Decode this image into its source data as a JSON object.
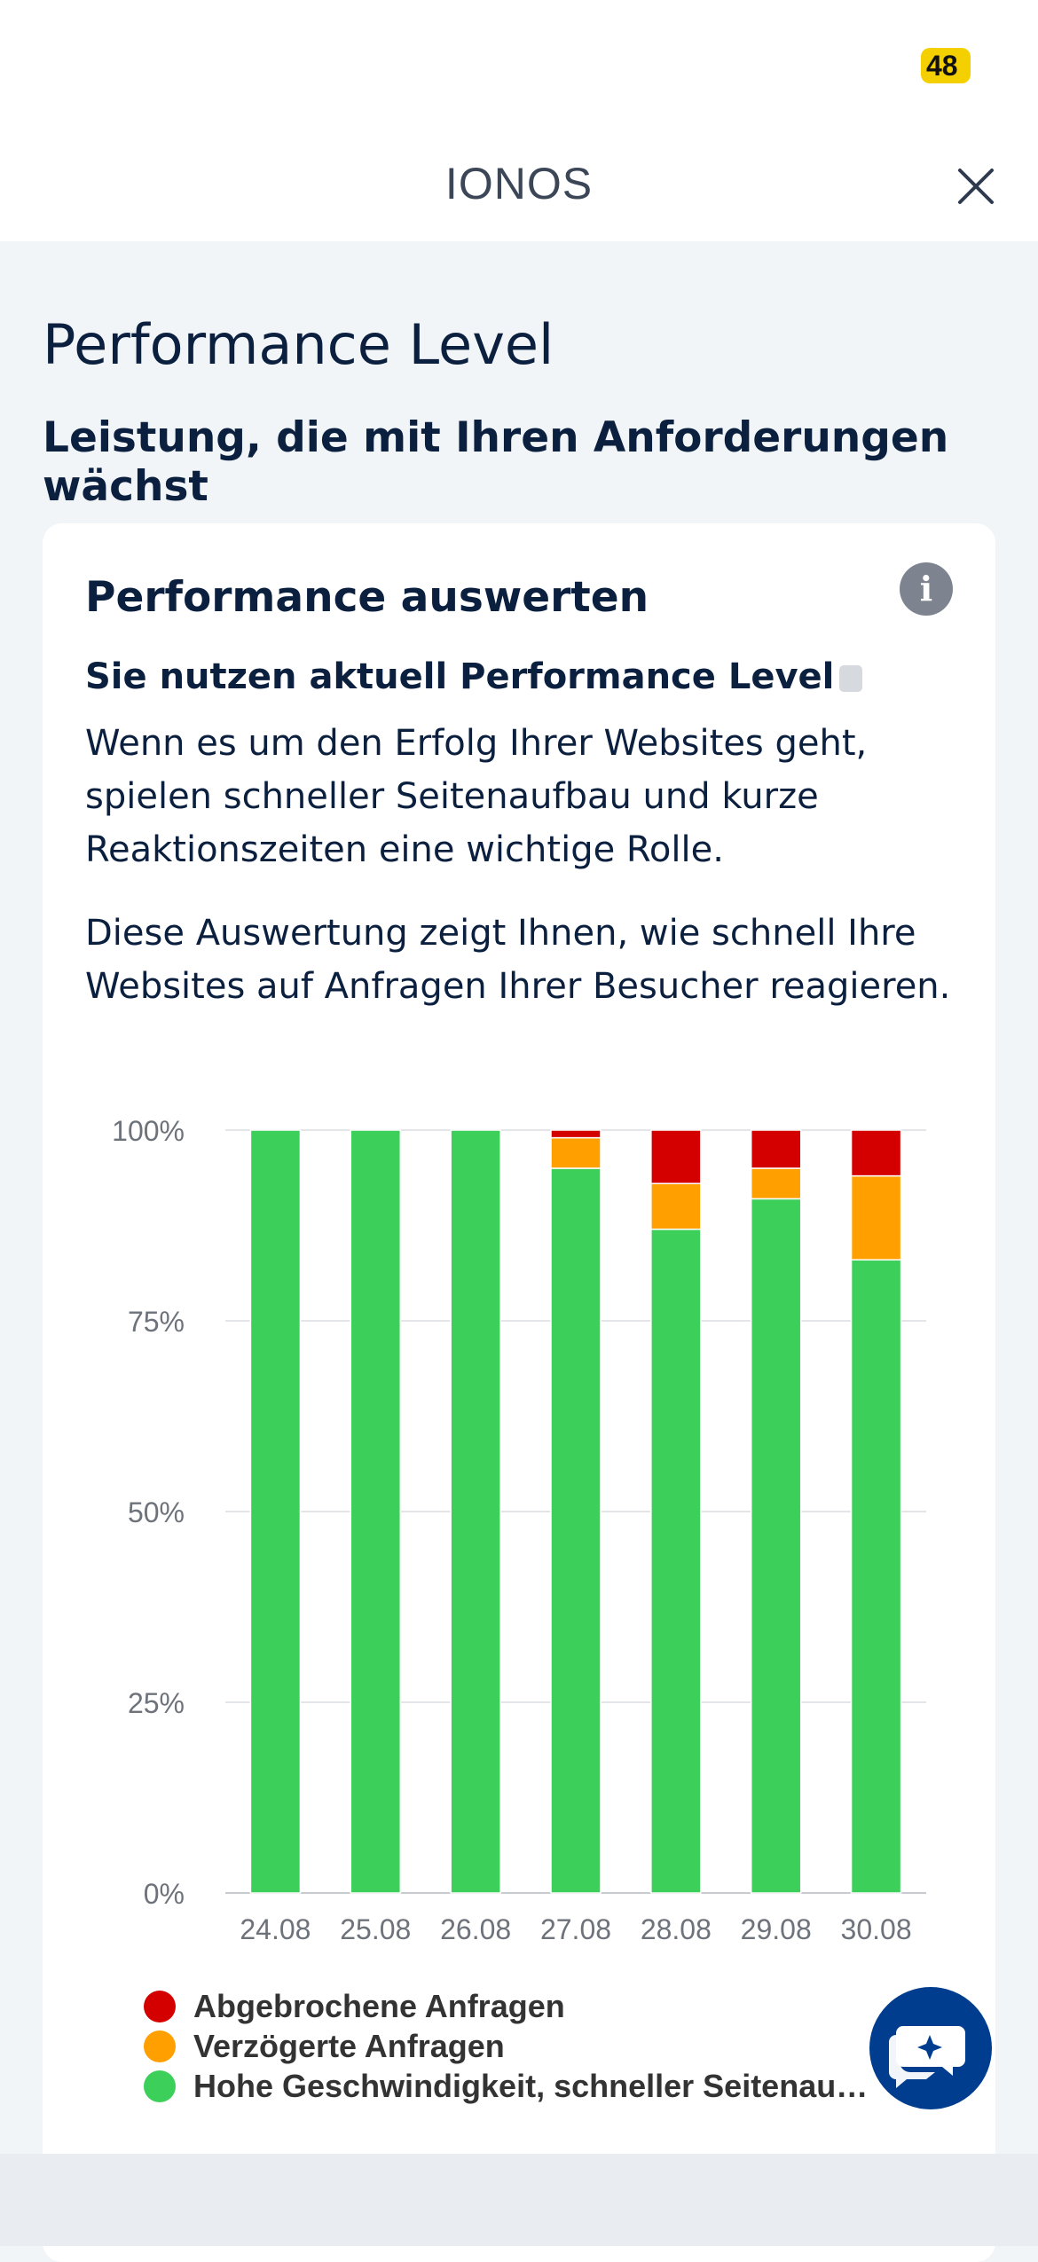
{
  "status_bar": {
    "battery": "48"
  },
  "header": {
    "title": "IONOS"
  },
  "page": {
    "title": "Performance Level",
    "subtitle": "Leistung, die mit Ihren Anforderungen wächst"
  },
  "card": {
    "title": "Performance auswerten",
    "current_level": "Sie nutzen aktuell Performance Level",
    "paragraph1": "Wenn es um den Erfolg Ihrer Websites geht, spielen schneller Seitenaufbau und kurze Reaktionszeiten eine wichtige Rolle.",
    "paragraph2": "Diese Auswertung zeigt Ihnen, wie schnell Ihre Websites auf Anfragen Ihrer Besucher reagieren."
  },
  "colors": {
    "red": "#d40000",
    "orange": "#ff9f00",
    "green": "#3ccf5a",
    "accent": "#003d8f"
  },
  "chart_data": {
    "type": "bar",
    "stacked": true,
    "categories": [
      "24.08",
      "25.08",
      "26.08",
      "27.08",
      "28.08",
      "29.08",
      "30.08"
    ],
    "series": [
      {
        "name": "Hohe Geschwindigkeit, schneller Seitenaufb…",
        "color": "#3ccf5a",
        "values": [
          100,
          100,
          100,
          95,
          87,
          91,
          83
        ]
      },
      {
        "name": "Verzögerte Anfragen",
        "color": "#ff9f00",
        "values": [
          0,
          0,
          0,
          4,
          6,
          4,
          11
        ]
      },
      {
        "name": "Abgebrochene Anfragen",
        "color": "#d40000",
        "values": [
          0,
          0,
          0,
          1,
          7,
          5,
          6
        ]
      }
    ],
    "y_ticks": [
      "0%",
      "25%",
      "50%",
      "75%",
      "100%"
    ],
    "ylim": [
      0,
      100
    ],
    "grid": true,
    "legend_position": "bottom"
  },
  "legend": [
    {
      "label": "Abgebrochene Anfragen",
      "color": "#d40000"
    },
    {
      "label": "Verzögerte Anfragen",
      "color": "#ff9f00"
    },
    {
      "label": "Hohe Geschwindigkeit, schneller Seitenaufb…",
      "color": "#3ccf5a"
    }
  ],
  "icons": {
    "close": "close-icon",
    "info": "info-icon",
    "chat": "chat-sparkle-icon"
  }
}
